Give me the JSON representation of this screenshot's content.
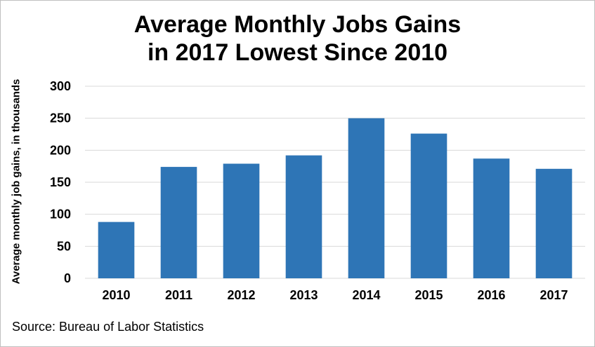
{
  "chart_data": {
    "type": "bar",
    "title_lines": [
      "Average Monthly Jobs Gains",
      "in 2017 Lowest Since 2010"
    ],
    "ylabel": "Average monthly job gains, in thousands",
    "xlabel": "",
    "categories": [
      "2010",
      "2011",
      "2012",
      "2013",
      "2014",
      "2015",
      "2016",
      "2017"
    ],
    "values": [
      88,
      174,
      179,
      192,
      250,
      226,
      187,
      171
    ],
    "ylim": [
      0,
      300
    ],
    "yticks": [
      0,
      50,
      100,
      150,
      200,
      250,
      300
    ],
    "grid": true,
    "legend": "none",
    "bar_color": "#2E75B6",
    "grid_color": "#d9d9d9"
  },
  "source": "Source: Bureau of Labor Statistics"
}
